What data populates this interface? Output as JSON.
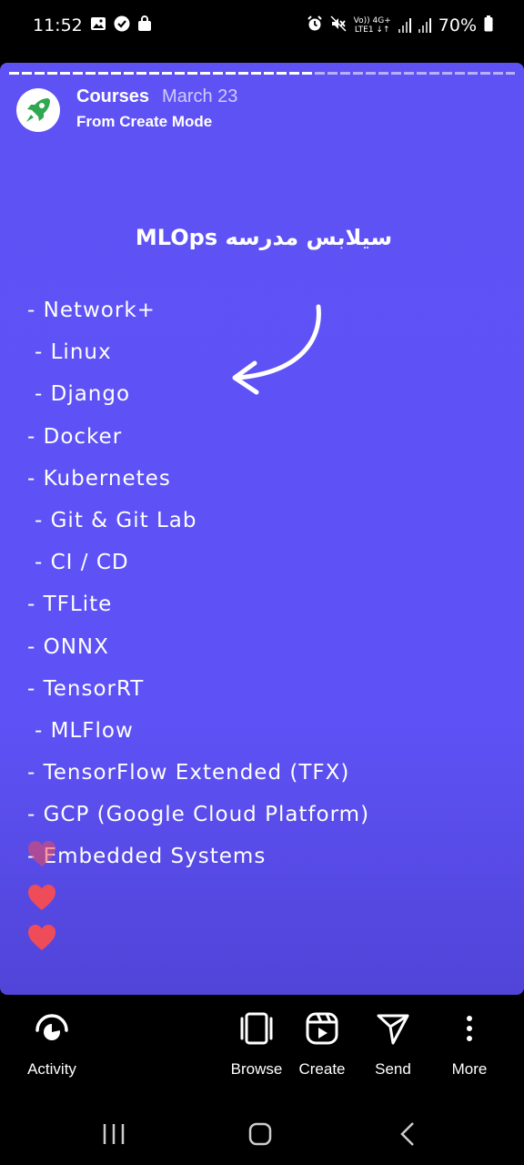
{
  "status_bar": {
    "time": "11:52",
    "battery": "70%",
    "network_top": "Vo)) 4G+",
    "network_bottom": "LTE1 ↓↑",
    "left_icons": [
      "gallery-icon",
      "shield-icon",
      "shopping-bag-icon"
    ],
    "right_icons": [
      "alarm-icon",
      "mute-icon",
      "signal-icon",
      "battery-icon"
    ]
  },
  "story": {
    "progress_fraction": 0.6,
    "account_name": "Courses",
    "date": "March 23",
    "subtitle": "From Create Mode",
    "avatar_icon": "rocket-icon",
    "title": "سیلابس مدرسه MLOps",
    "items": [
      {
        "text": "- Network+",
        "indent": false
      },
      {
        "text": "- Linux",
        "indent": true
      },
      {
        "text": "- Django",
        "indent": true
      },
      {
        "text": "- Docker",
        "indent": false
      },
      {
        "text": "- Kubernetes",
        "indent": false
      },
      {
        "text": "- Git & Git Lab",
        "indent": true
      },
      {
        "text": "- CI / CD",
        "indent": true
      },
      {
        "text": "- TFLite",
        "indent": false
      },
      {
        "text": "- ONNX",
        "indent": false
      },
      {
        "text": "- TensorRT",
        "indent": false
      },
      {
        "text": "- MLFlow",
        "indent": true
      },
      {
        "text": "- TensorFlow Extended (TFX)",
        "indent": false
      },
      {
        "text": "- GCP (Google Cloud Platform)",
        "indent": false
      },
      {
        "text": "- Embedded Systems",
        "indent": false
      }
    ],
    "colors": {
      "background": "#5f52f5",
      "heart": "#ef4c5a"
    }
  },
  "bottom_nav": {
    "items": [
      {
        "label": "Activity",
        "icon": "activity-icon"
      },
      {
        "label": "Browse",
        "icon": "browse-icon"
      },
      {
        "label": "Create",
        "icon": "reels-icon"
      },
      {
        "label": "Send",
        "icon": "send-icon"
      },
      {
        "label": "More",
        "icon": "more-icon"
      }
    ]
  },
  "system_nav": {
    "buttons": [
      "recents-icon",
      "home-icon",
      "back-icon"
    ]
  }
}
